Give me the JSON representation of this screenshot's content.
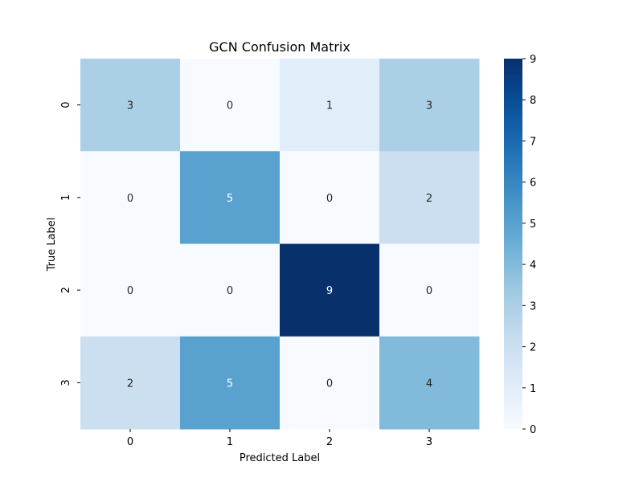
{
  "chart_data": {
    "type": "heatmap",
    "title": "GCN Confusion Matrix",
    "xlabel": "Predicted Label",
    "ylabel": "True Label",
    "x_categories": [
      "0",
      "1",
      "2",
      "3"
    ],
    "y_categories": [
      "0",
      "1",
      "2",
      "3"
    ],
    "matrix": [
      [
        3,
        0,
        1,
        3
      ],
      [
        0,
        5,
        0,
        2
      ],
      [
        0,
        0,
        9,
        0
      ],
      [
        2,
        5,
        0,
        4
      ]
    ],
    "annotate": true,
    "colormap": "Blues",
    "vmin": 0,
    "vmax": 9,
    "colorbar_ticks": [
      0,
      1,
      2,
      3,
      4,
      5,
      6,
      7,
      8,
      9
    ],
    "colorbar_tick_labels": [
      "0",
      "1",
      "2",
      "3",
      "4",
      "5",
      "6",
      "7",
      "8",
      "9"
    ],
    "grid": false,
    "legend": "colorbar-right",
    "colors": {
      "low": "#f7fbff",
      "high": "#08306b",
      "text_dark": "#262626",
      "text_light": "#ffffff"
    }
  }
}
